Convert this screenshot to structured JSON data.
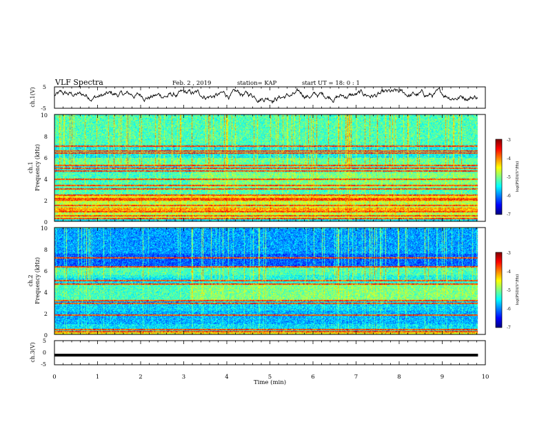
{
  "header": {
    "title": "VLF Spectra",
    "date": "Feb. 2 , 2019",
    "station": "station= KAP",
    "start": "start UT = 18: 0 : 1"
  },
  "colors": {
    "jet": [
      "#000080",
      "#0000ff",
      "#0080ff",
      "#00ffff",
      "#80ff80",
      "#ffff00",
      "#ff8000",
      "#ff0000",
      "#800000"
    ],
    "trace": "#000000"
  },
  "chart_data": [
    {
      "type": "line",
      "name": "ch1-waveform",
      "ylabel": "ch.1(V)",
      "ylim": [
        -5,
        5
      ],
      "yticks": [
        "5",
        "-5"
      ],
      "xlim": [
        0,
        10
      ],
      "x_end": 9.83,
      "noise": {
        "mean": 1.0,
        "amplitude": 3.5
      }
    },
    {
      "type": "heatmap",
      "name": "ch1-spectrogram",
      "ylabel_channel": "ch.1",
      "ylabel": "Frequency (kHz)",
      "ylim": [
        0,
        10
      ],
      "yticks": [
        "0",
        "2",
        "4",
        "6",
        "8",
        "10"
      ],
      "xlim": [
        0,
        10
      ],
      "x_end": 9.83,
      "transition_min": 3.15,
      "bands": [
        {
          "from": 0.0,
          "to": 0.2,
          "level": 0.35
        },
        {
          "from": 0.2,
          "to": 0.9,
          "level": 0.55
        },
        {
          "from": 0.9,
          "to": 1.3,
          "level": 0.7
        },
        {
          "from": 1.3,
          "to": 1.9,
          "level": 0.55
        },
        {
          "from": 1.9,
          "to": 2.4,
          "level": 0.62
        },
        {
          "from": 2.4,
          "to": 3.2,
          "level": 0.45
        },
        {
          "from": 3.2,
          "to": 4.6,
          "level": 0.5
        },
        {
          "from": 4.6,
          "to": 5.3,
          "level": 0.42
        },
        {
          "from": 5.3,
          "to": 6.0,
          "level": 0.48
        },
        {
          "from": 6.0,
          "to": 7.2,
          "level": 0.38
        },
        {
          "from": 7.2,
          "to": 10.0,
          "level": 0.45
        }
      ],
      "lines_khz": [
        0.3,
        0.55,
        1.0,
        1.55,
        2.05,
        2.2,
        2.5,
        3.1,
        3.45,
        4.0,
        4.8,
        5.05,
        5.3,
        6.45,
        6.65,
        7.1
      ]
    },
    {
      "type": "heatmap",
      "name": "ch2-spectrogram",
      "ylabel_channel": "ch.2",
      "ylabel": "Frequency (kHz)",
      "ylim": [
        0,
        10
      ],
      "yticks": [
        "0",
        "2",
        "4",
        "6",
        "8",
        "10"
      ],
      "xlim": [
        0,
        10
      ],
      "x_end": 9.83,
      "transition_min": 3.15,
      "bands": [
        {
          "from": 0.0,
          "to": 0.3,
          "level": 0.62
        },
        {
          "from": 0.3,
          "to": 1.0,
          "level": 0.35
        },
        {
          "from": 1.0,
          "to": 2.2,
          "level": 0.3
        },
        {
          "from": 2.2,
          "to": 3.2,
          "level": 0.34
        },
        {
          "from": 3.2,
          "to": 4.8,
          "level": 0.5
        },
        {
          "from": 4.8,
          "to": 5.6,
          "level": 0.4
        },
        {
          "from": 5.6,
          "to": 6.4,
          "level": 0.45
        },
        {
          "from": 6.4,
          "to": 7.6,
          "level": 0.22
        },
        {
          "from": 7.6,
          "to": 10.0,
          "level": 0.28
        }
      ],
      "lines_khz": [
        0.3,
        0.5,
        1.9,
        3.0,
        3.2,
        4.8,
        5.1,
        6.4,
        7.2
      ]
    },
    {
      "type": "line",
      "name": "ch3-waveform",
      "ylabel": "ch.3(V)",
      "ylim": [
        -5,
        5
      ],
      "yticks": [
        "5",
        "0",
        "-5"
      ],
      "xlim": [
        0,
        10
      ],
      "x_end": 9.83,
      "constant_value": -1.0
    }
  ],
  "x_axis": {
    "label": "Time (min)",
    "ticks": [
      "0",
      "1",
      "2",
      "3",
      "4",
      "5",
      "6",
      "7",
      "8",
      "9",
      "10"
    ]
  },
  "colorbars": [
    {
      "label": "log(PSD)(V²/Hz)",
      "ticks": [
        "-3",
        "-4",
        "-5",
        "-6",
        "-7"
      ],
      "range": [
        -7,
        -3
      ]
    },
    {
      "label": "log(PSD)(V²/Hz)",
      "ticks": [
        "-3",
        "-4",
        "-5",
        "-6",
        "-7"
      ],
      "range": [
        -7,
        -3
      ]
    }
  ]
}
